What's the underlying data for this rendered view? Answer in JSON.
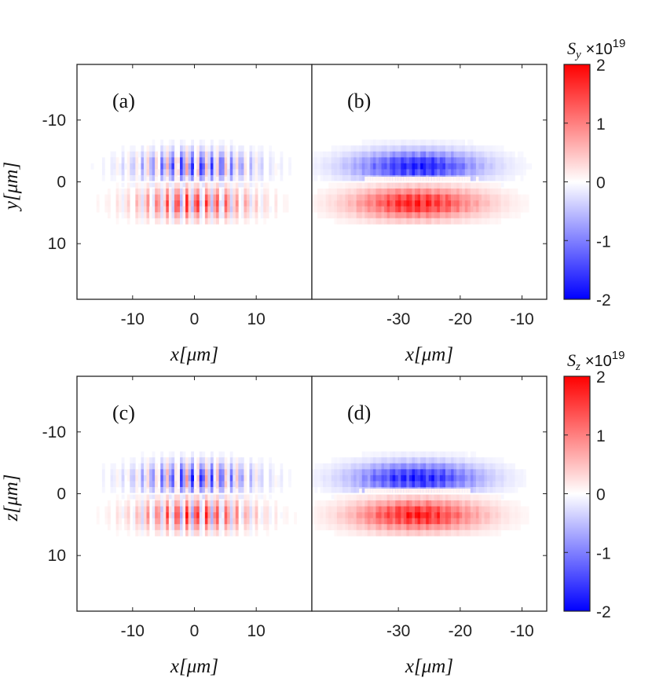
{
  "chart_data": [
    {
      "type": "heatmap",
      "panel": "(a)",
      "title": "",
      "xlabel": "x[μm]",
      "ylabel": "y[μm]",
      "xlim": [
        -19,
        19
      ],
      "ylim": [
        -19,
        19
      ],
      "xticks": [
        -10,
        0,
        10
      ],
      "xtick_labels": [
        "-10",
        "0",
        "10"
      ],
      "yticks": [
        -10,
        0,
        10
      ],
      "ytick_labels": [
        "-10",
        "0",
        "10"
      ],
      "quantity": "S_y",
      "field": {
        "center_x": 0,
        "envelope_x_width": 9,
        "fringe_period": 1.6,
        "band_center_offset": 3,
        "band_width": 2.4,
        "upper_band_sign_bias": -0.3,
        "lower_band_sign_bias": 0.3
      }
    },
    {
      "type": "heatmap",
      "panel": "(b)",
      "title": "",
      "xlabel": "x[μm]",
      "ylabel": "",
      "xlim": [
        -44,
        -6
      ],
      "ylim": [
        -19,
        19
      ],
      "xticks": [
        -30,
        -20,
        -10
      ],
      "xtick_labels": [
        "-30",
        "-20",
        "-10"
      ],
      "quantity": "S_y",
      "field": {
        "center_x": -27,
        "envelope_x_width": 10,
        "fringe_period": 1.6,
        "band_center_offset": 3,
        "band_width": 2.4,
        "upper_band_sign_bias": -0.85,
        "lower_band_sign_bias": 0.85
      }
    },
    {
      "type": "heatmap",
      "panel": "(c)",
      "title": "",
      "xlabel": "x[μm]",
      "ylabel": "z[μm]",
      "xlim": [
        -19,
        19
      ],
      "ylim": [
        -19,
        19
      ],
      "xticks": [
        -10,
        0,
        10
      ],
      "xtick_labels": [
        "-10",
        "0",
        "10"
      ],
      "yticks": [
        -10,
        0,
        10
      ],
      "ytick_labels": [
        "-10",
        "0",
        "10"
      ],
      "quantity": "S_z",
      "field": {
        "center_x": 0,
        "envelope_x_width": 9,
        "fringe_period": 1.6,
        "band_center_offset": 3,
        "band_width": 2.4,
        "upper_band_sign_bias": -0.3,
        "lower_band_sign_bias": 0.3
      }
    },
    {
      "type": "heatmap",
      "panel": "(d)",
      "title": "",
      "xlabel": "x[μm]",
      "ylabel": "",
      "xlim": [
        -44,
        -6
      ],
      "ylim": [
        -19,
        19
      ],
      "xticks": [
        -30,
        -20,
        -10
      ],
      "xtick_labels": [
        "-30",
        "-20",
        "-10"
      ],
      "quantity": "S_z",
      "field": {
        "center_x": -27,
        "envelope_x_width": 10,
        "fringe_period": 1.6,
        "band_center_offset": 3,
        "band_width": 2.4,
        "upper_band_sign_bias": -0.85,
        "lower_band_sign_bias": 0.85
      }
    }
  ],
  "colorbars": [
    {
      "title_symbol": "S",
      "title_subscript": "y",
      "title_multiplier": "×10",
      "title_exponent": "19",
      "range": [
        -2,
        2
      ],
      "ticks": [
        2,
        1,
        0,
        -1,
        -2
      ],
      "tick_labels": [
        "2",
        "1",
        "0",
        "-1",
        "-2"
      ],
      "colormap": {
        "low": "#0000ff",
        "mid": "#ffffff",
        "high": "#ff0000"
      }
    },
    {
      "title_symbol": "S",
      "title_subscript": "z",
      "title_multiplier": "×10",
      "title_exponent": "19",
      "range": [
        -2,
        2
      ],
      "ticks": [
        2,
        1,
        0,
        -1,
        -2
      ],
      "tick_labels": [
        "2",
        "1",
        "0",
        "-1",
        "-2"
      ],
      "colormap": {
        "low": "#0000ff",
        "mid": "#ffffff",
        "high": "#ff0000"
      }
    }
  ]
}
